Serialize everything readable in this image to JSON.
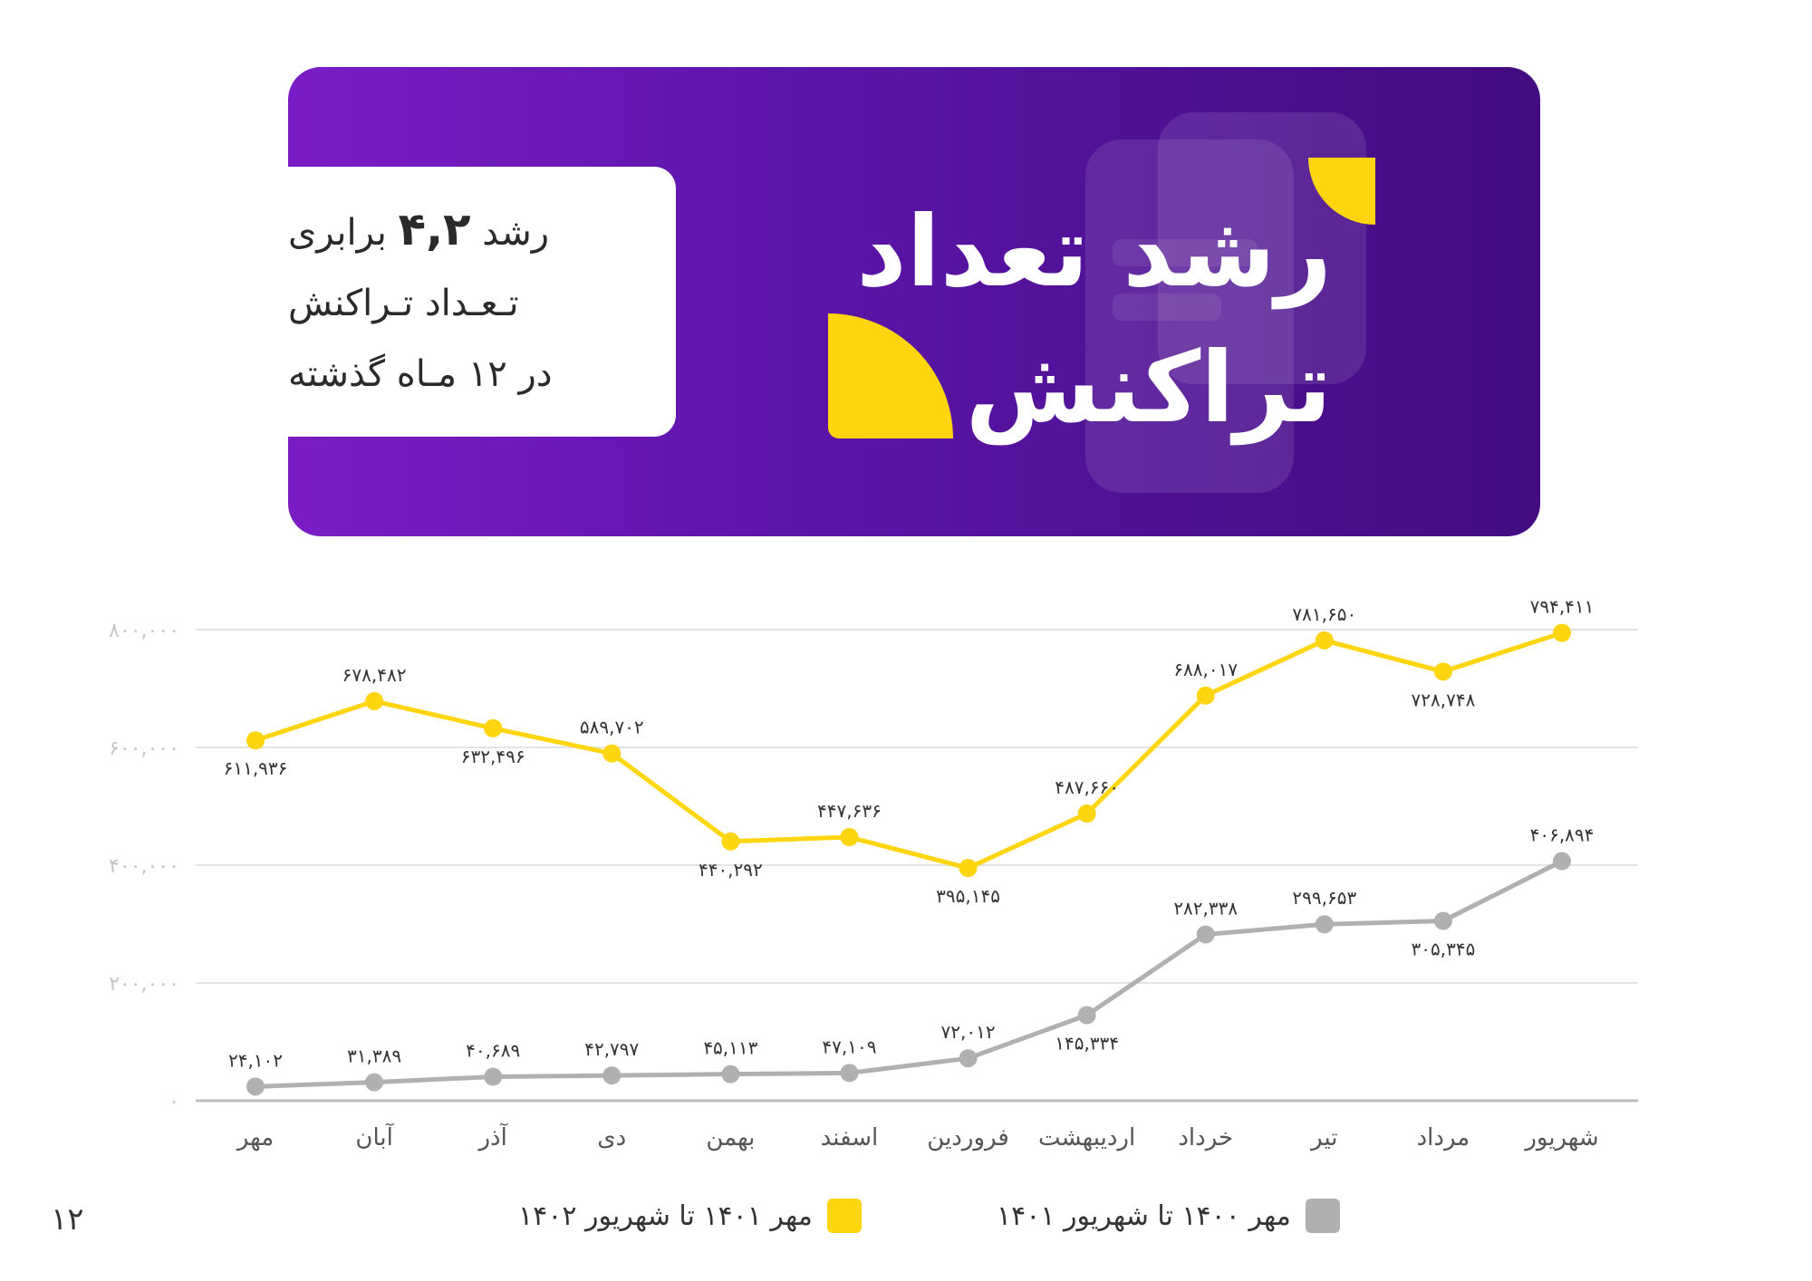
{
  "banner": {
    "title_line1": "رشد تعداد",
    "title_line2": "تراکنش",
    "info_prefix": "رشد",
    "info_value": "۴,۲",
    "info_suffix": "برابری",
    "info_line2": "تـعـداد تـراکنش",
    "info_line3": "در ۱۲ مـاه گذشته"
  },
  "colors": {
    "current": "#ffd50f",
    "previous": "#b0b0b0",
    "banner_start": "#7a1cc6",
    "banner_end": "#430c80"
  },
  "page_number": "۱۲",
  "chart_data": {
    "type": "line",
    "categories": [
      "مهر",
      "آبان",
      "آذر",
      "دی",
      "بهمن",
      "اسفند",
      "فروردین",
      "اردیبهشت",
      "خرداد",
      "تیر",
      "مرداد",
      "شهریور"
    ],
    "y_ticks": [
      "۰",
      "۲۰۰,۰۰۰",
      "۴۰۰,۰۰۰",
      "۶۰۰,۰۰۰",
      "۸۰۰,۰۰۰"
    ],
    "ylim": [
      0,
      800000
    ],
    "grid": true,
    "legend_position": "bottom",
    "series": [
      {
        "name": "مهر ۱۴۰۱ تا شهریور ۱۴۰۲",
        "color": "#ffd50f",
        "values": [
          611936,
          678482,
          632496,
          589702,
          440292,
          447636,
          395145,
          487660,
          688017,
          781650,
          728748,
          794411
        ],
        "labels": [
          "۶۱۱,۹۳۶",
          "۶۷۸,۴۸۲",
          "۶۳۲,۴۹۶",
          "۵۸۹,۷۰۲",
          "۴۴۰,۲۹۲",
          "۴۴۷,۶۳۶",
          "۳۹۵,۱۴۵",
          "۴۸۷,۶۶۰",
          "۶۸۸,۰۱۷",
          "۷۸۱,۶۵۰",
          "۷۲۸,۷۴۸",
          "۷۹۴,۴۱۱"
        ]
      },
      {
        "name": "مهر ۱۴۰۰ تا شهریور ۱۴۰۱",
        "color": "#b0b0b0",
        "values": [
          24102,
          31389,
          40689,
          42797,
          45113,
          47109,
          72012,
          145334,
          282338,
          299653,
          305345,
          406894
        ],
        "labels": [
          "۲۴,۱۰۲",
          "۳۱,۳۸۹",
          "۴۰,۶۸۹",
          "۴۲,۷۹۷",
          "۴۵,۱۱۳",
          "۴۷,۱۰۹",
          "۷۲,۰۱۲",
          "۱۴۵,۳۳۴",
          "۲۸۲,۳۳۸",
          "۲۹۹,۶۵۳",
          "۳۰۵,۳۴۵",
          "۴۰۶,۸۹۴"
        ]
      }
    ]
  }
}
